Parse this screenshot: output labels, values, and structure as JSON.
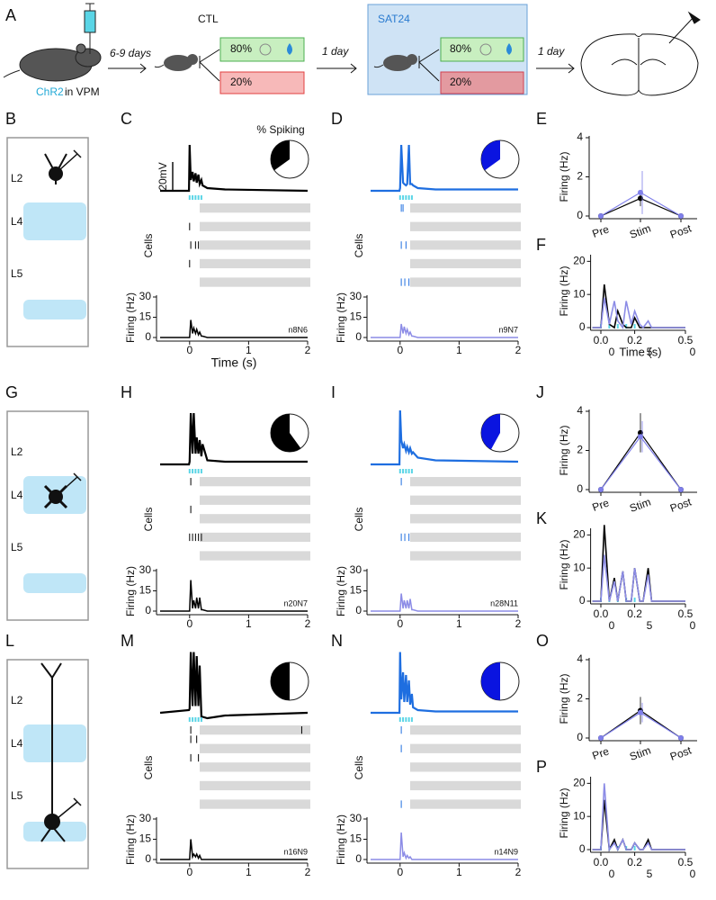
{
  "schematic": {
    "panel": "A",
    "injection_label": "ChR2",
    "injection_site": "in VPM",
    "delay1": "6-9 days",
    "group1": "CTL",
    "pct_high1": "80%",
    "pct_low1": "20%",
    "delay2": "1 day",
    "group2": "SAT24",
    "pct_high2": "80%",
    "pct_low2": "20%",
    "delay3": "1 day"
  },
  "diagrams": [
    {
      "panel": "B",
      "layers": [
        "L2",
        "L4",
        "L5"
      ]
    },
    {
      "panel": "G",
      "layers": [
        "L2",
        "L4",
        "L5"
      ]
    },
    {
      "panel": "L",
      "layers": [
        "L2",
        "L4",
        "L5"
      ]
    }
  ],
  "chart_data": [
    {
      "type": "raster",
      "panel": "C",
      "title": "% Spiking",
      "scale_label": "20mV",
      "spiking_pct": 35,
      "pie_color": "#000000",
      "color": "#000000",
      "psth_color": "#000000",
      "stim_times": [
        0,
        0.05,
        0.1,
        0.15,
        0.2
      ],
      "cells_label": "Cells",
      "raster": [
        [],
        [],
        [
          0
        ],
        [],
        [
          0.02,
          0.1,
          0.15
        ],
        [],
        [
          0
        ],
        [],
        []
      ],
      "x": [
        -0.5,
        -0.01,
        0,
        0.02,
        0.05,
        0.07,
        0.1,
        0.12,
        0.15,
        0.17,
        0.2,
        0.22,
        0.3,
        0.6,
        2
      ],
      "trace_values": [
        0,
        0,
        34,
        8,
        14,
        7,
        13,
        6,
        12,
        5,
        8,
        4,
        2,
        1,
        0
      ],
      "values": [
        0,
        0,
        0,
        13,
        3,
        7,
        3,
        6,
        2,
        4,
        1,
        1,
        0,
        0,
        0
      ],
      "xlim": [
        -0.5,
        2
      ],
      "xticks": [
        0,
        1,
        2
      ],
      "ylim": [
        0,
        30
      ],
      "yticks": [
        0,
        15,
        30
      ],
      "ylabel": "Firing (Hz)",
      "xlabel": "Time (s)",
      "annotation": "n8N6"
    },
    {
      "type": "raster",
      "panel": "D",
      "spiking_pct": 35,
      "pie_color": "#0a14e0",
      "color": "#1e6ee0",
      "psth_color": "#8c8ce6",
      "stim_times": [
        0,
        0.05,
        0.1,
        0.15,
        0.2
      ],
      "cells_label": "Cells",
      "raster": [
        [
          0.02,
          0.05
        ],
        [],
        [],
        [],
        [
          0.02,
          0.1
        ],
        [],
        [],
        [],
        [
          0.02,
          0.08,
          0.15
        ]
      ],
      "x": [
        -0.5,
        -0.01,
        0,
        0.02,
        0.05,
        0.07,
        0.1,
        0.12,
        0.15,
        0.17,
        0.2,
        0.22,
        0.3,
        0.6,
        2
      ],
      "trace_values": [
        0,
        0,
        2,
        34,
        6,
        5,
        4,
        5,
        34,
        5,
        5,
        4,
        2,
        1,
        1
      ],
      "values": [
        0,
        0,
        0,
        10,
        3,
        8,
        3,
        6,
        2,
        4,
        1,
        1,
        0,
        0,
        0
      ],
      "xlim": [
        -0.5,
        2
      ],
      "xticks": [
        0,
        1,
        2
      ],
      "ylim": [
        0,
        30
      ],
      "yticks": [
        0,
        15,
        30
      ],
      "ylabel": "Firing (Hz)",
      "annotation": "n9N7"
    },
    {
      "type": "raster",
      "panel": "H",
      "spiking_pct": 60,
      "pie_color": "#000000",
      "color": "#000000",
      "psth_color": "#000000",
      "stim_times": [
        0,
        0.05,
        0.1,
        0.15,
        0.2
      ],
      "cells_label": "Cells",
      "raster": [
        [
          0.02
        ],
        [],
        [],
        [
          0.02
        ],
        [],
        [],
        [
          0,
          0.05,
          0.1,
          0.15,
          0.2
        ],
        [],
        []
      ],
      "x": [
        -0.5,
        -0.01,
        0,
        0.02,
        0.05,
        0.07,
        0.1,
        0.12,
        0.15,
        0.17,
        0.2,
        0.22,
        0.3,
        0.6,
        2
      ],
      "trace_values": [
        0,
        0,
        2,
        38,
        8,
        38,
        8,
        20,
        8,
        18,
        6,
        15,
        3,
        2,
        2
      ],
      "values": [
        0,
        0,
        0,
        23,
        2,
        8,
        2,
        10,
        2,
        10,
        1,
        1,
        0,
        0,
        0
      ],
      "xlim": [
        -0.5,
        2
      ],
      "xticks": [
        0,
        1,
        2
      ],
      "ylim": [
        0,
        30
      ],
      "yticks": [
        0,
        15,
        30
      ],
      "ylabel": "Firing (Hz)",
      "annotation": "n20N7"
    },
    {
      "type": "raster",
      "panel": "I",
      "spiking_pct": 42,
      "pie_color": "#0a14e0",
      "color": "#1e6ee0",
      "psth_color": "#8c8ce6",
      "stim_times": [
        0,
        0.05,
        0.1,
        0.15,
        0.2
      ],
      "cells_label": "Cells",
      "raster": [
        [
          0.02
        ],
        [],
        [],
        [],
        [],
        [],
        [
          0.02,
          0.08,
          0.15
        ],
        [],
        []
      ],
      "x": [
        -0.5,
        -0.01,
        0,
        0.02,
        0.05,
        0.07,
        0.1,
        0.12,
        0.15,
        0.17,
        0.2,
        0.22,
        0.3,
        0.6,
        2
      ],
      "trace_values": [
        0,
        0,
        40,
        18,
        12,
        15,
        10,
        13,
        9,
        12,
        8,
        9,
        5,
        3,
        2
      ],
      "values": [
        0,
        0,
        0,
        13,
        2,
        8,
        2,
        8,
        2,
        9,
        1,
        1,
        0,
        0,
        0
      ],
      "xlim": [
        -0.5,
        2
      ],
      "xticks": [
        0,
        1,
        2
      ],
      "ylim": [
        0,
        30
      ],
      "yticks": [
        0,
        15,
        30
      ],
      "ylabel": "Firing (Hz)",
      "annotation": "n28N11"
    },
    {
      "type": "raster",
      "panel": "M",
      "spiking_pct": 50,
      "pie_color": "#000000",
      "color": "#000000",
      "psth_color": "#000000",
      "stim_times": [
        0,
        0.05,
        0.1,
        0.15,
        0.2
      ],
      "cells_label": "Cells",
      "raster": [
        [
          0.02,
          1.9
        ],
        [
          0.02,
          0.12
        ],
        [],
        [
          0.02,
          0.15
        ],
        [],
        [],
        [],
        [],
        []
      ],
      "x": [
        -0.5,
        -0.01,
        0,
        0.02,
        0.05,
        0.07,
        0.1,
        0.12,
        0.15,
        0.17,
        0.2,
        0.22,
        0.3,
        0.6,
        2
      ],
      "trace_values": [
        0,
        2,
        3,
        45,
        5,
        45,
        5,
        42,
        5,
        35,
        -3,
        -3,
        -4,
        -2,
        0
      ],
      "values": [
        0,
        0,
        0,
        15,
        2,
        4,
        2,
        4,
        1,
        3,
        0,
        0,
        0,
        0,
        0
      ],
      "xlim": [
        -0.5,
        2
      ],
      "xticks": [
        0,
        1,
        2
      ],
      "ylim": [
        0,
        30
      ],
      "yticks": [
        0,
        15,
        30
      ],
      "ylabel": "Firing (Hz)",
      "annotation": "n16N9"
    },
    {
      "type": "raster",
      "panel": "N",
      "spiking_pct": 50,
      "pie_color": "#0a14e0",
      "color": "#1e6ee0",
      "psth_color": "#8c8ce6",
      "stim_times": [
        0,
        0.05,
        0.1,
        0.15,
        0.2
      ],
      "cells_label": "Cells",
      "raster": [
        [
          0.02
        ],
        [],
        [
          0.02
        ],
        [],
        [],
        [],
        [],
        [],
        [
          0.02
        ]
      ],
      "x": [
        -0.5,
        -0.01,
        0,
        0.02,
        0.05,
        0.07,
        0.1,
        0.12,
        0.15,
        0.17,
        0.2,
        0.22,
        0.3,
        0.6,
        2
      ],
      "trace_values": [
        0,
        0,
        45,
        10,
        30,
        8,
        28,
        8,
        24,
        6,
        14,
        4,
        2,
        1,
        1
      ],
      "values": [
        0,
        0,
        0,
        20,
        2,
        5,
        1,
        3,
        1,
        2,
        0,
        0,
        0,
        0,
        0
      ],
      "xlim": [
        -0.5,
        2
      ],
      "xticks": [
        0,
        1,
        2
      ],
      "ylim": [
        0,
        30
      ],
      "yticks": [
        0,
        15,
        30
      ],
      "ylabel": "Firing (Hz)",
      "annotation": "n14N9"
    },
    {
      "type": "line",
      "panel": "E",
      "categories": [
        "Pre",
        "Stim",
        "Post"
      ],
      "series": [
        {
          "color": "#000000",
          "values": [
            0,
            0.9,
            0
          ],
          "errors": [
            0,
            0.4,
            0
          ]
        },
        {
          "color": "#7f7fea",
          "values": [
            0,
            1.2,
            0
          ],
          "errors": [
            0,
            1.1,
            0
          ]
        }
      ],
      "ylim": [
        0,
        4
      ],
      "yticks": [
        0,
        2,
        4
      ],
      "ylabel": "Firing (Hz)"
    },
    {
      "type": "line",
      "panel": "F",
      "x": [
        -0.05,
        0,
        0.02,
        0.05,
        0.08,
        0.1,
        0.13,
        0.15,
        0.18,
        0.2,
        0.23,
        0.25,
        0.28,
        0.3,
        0.5
      ],
      "series": [
        {
          "color": "#000000",
          "values": [
            0,
            0,
            13,
            1,
            0,
            5,
            1,
            0,
            0,
            3,
            0,
            0,
            0,
            0,
            0
          ]
        },
        {
          "color": "#8c8ce6",
          "values": [
            0,
            0,
            9,
            1,
            8,
            2,
            0,
            8,
            1,
            5,
            1,
            0,
            2,
            0,
            0
          ]
        }
      ],
      "stim_times": [
        0,
        0.05,
        0.1,
        0.15,
        0.2
      ],
      "xlim": [
        -0.05,
        0.5
      ],
      "xticks": [
        {
          "value": 0,
          "label": "0.0"
        },
        {
          "value": 0.2,
          "label": "0.2"
        },
        {
          "value": 0.5,
          "label": "0.5"
        }
      ],
      "x_sublabels": [
        "0",
        "5",
        "0"
      ],
      "ylim": [
        0,
        22
      ],
      "yticks": [
        0,
        10,
        20
      ],
      "ylabel": "Firing (Hz)",
      "xlabel": "Time (s)"
    },
    {
      "type": "line",
      "panel": "J",
      "categories": [
        "Pre",
        "Stim",
        "Post"
      ],
      "series": [
        {
          "color": "#000000",
          "values": [
            0,
            2.9,
            0
          ],
          "errors": [
            0,
            1.0,
            0
          ]
        },
        {
          "color": "#7f7fea",
          "values": [
            0,
            2.7,
            0
          ],
          "errors": [
            0,
            0.8,
            0
          ]
        }
      ],
      "ylim": [
        0,
        4
      ],
      "yticks": [
        0,
        2,
        4
      ],
      "ylabel": "Firing (Hz)"
    },
    {
      "type": "line",
      "panel": "K",
      "x": [
        -0.05,
        0,
        0.02,
        0.05,
        0.08,
        0.1,
        0.13,
        0.15,
        0.18,
        0.2,
        0.23,
        0.25,
        0.28,
        0.3,
        0.5
      ],
      "series": [
        {
          "color": "#000000",
          "values": [
            0,
            0,
            23,
            0,
            7,
            0,
            9,
            0,
            0,
            10,
            0,
            0,
            10,
            0,
            0
          ]
        },
        {
          "color": "#8c8ce6",
          "values": [
            0,
            0,
            14,
            0,
            6,
            0,
            9,
            0,
            0,
            10,
            0,
            0,
            8,
            0,
            0
          ]
        }
      ],
      "stim_times": [
        0,
        0.05,
        0.1,
        0.15,
        0.2
      ],
      "xlim": [
        -0.05,
        0.5
      ],
      "xticks": [
        {
          "value": 0,
          "label": "0.0"
        },
        {
          "value": 0.2,
          "label": "0.2"
        },
        {
          "value": 0.5,
          "label": "0.5"
        }
      ],
      "x_sublabels": [
        "0",
        "5",
        "0"
      ],
      "ylim": [
        0,
        22
      ],
      "yticks": [
        0,
        10,
        20
      ],
      "ylabel": "Firing (Hz)"
    },
    {
      "type": "line",
      "panel": "O",
      "categories": [
        "Pre",
        "Stim",
        "Post"
      ],
      "series": [
        {
          "color": "#000000",
          "values": [
            0,
            1.4,
            0
          ],
          "errors": [
            0,
            0.7,
            0
          ]
        },
        {
          "color": "#7f7fea",
          "values": [
            0,
            1.3,
            0
          ],
          "errors": [
            0,
            0.5,
            0
          ]
        }
      ],
      "ylim": [
        0,
        4
      ],
      "yticks": [
        0,
        2,
        4
      ],
      "ylabel": "Firing (Hz)"
    },
    {
      "type": "line",
      "panel": "P",
      "x": [
        -0.05,
        0,
        0.02,
        0.05,
        0.08,
        0.1,
        0.13,
        0.15,
        0.18,
        0.2,
        0.23,
        0.25,
        0.28,
        0.3,
        0.5
      ],
      "series": [
        {
          "color": "#000000",
          "values": [
            0,
            0,
            15,
            0,
            3,
            0,
            3,
            0,
            0,
            2,
            0,
            0,
            3,
            0,
            0
          ]
        },
        {
          "color": "#8c8ce6",
          "values": [
            0,
            0,
            20,
            0,
            2,
            0,
            3,
            0,
            0,
            2,
            0,
            0,
            2,
            0,
            0
          ]
        }
      ],
      "stim_times": [
        0,
        0.05,
        0.1,
        0.15,
        0.2
      ],
      "xlim": [
        -0.05,
        0.5
      ],
      "xticks": [
        {
          "value": 0,
          "label": "0.0"
        },
        {
          "value": 0.2,
          "label": "0.2"
        },
        {
          "value": 0.5,
          "label": "0.5"
        }
      ],
      "x_sublabels": [
        "0",
        "5",
        "0"
      ],
      "ylim": [
        0,
        22
      ],
      "yticks": [
        0,
        10,
        20
      ],
      "ylabel": "Firing (Hz)"
    }
  ]
}
